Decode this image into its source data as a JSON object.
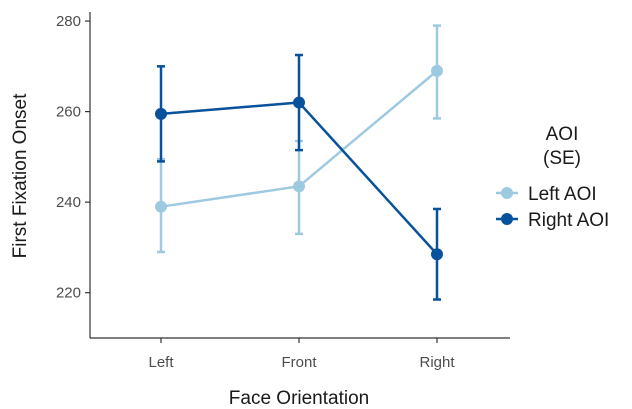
{
  "chart_data": {
    "type": "line",
    "title": "",
    "xlabel": "Face Orientation",
    "ylabel": "First Fixation Onset",
    "categories": [
      "Left",
      "Front",
      "Right"
    ],
    "ylim": [
      210,
      282
    ],
    "yticks": [
      220,
      240,
      260,
      280
    ],
    "grid": false,
    "legend": {
      "title_lines": [
        "AOI",
        "(SE)"
      ],
      "placement": "right"
    },
    "series": [
      {
        "name": "Left AOI",
        "color": "#9ecae1",
        "values": [
          239,
          243.5,
          269
        ],
        "se_low": [
          229,
          233,
          258.5
        ],
        "se_high": [
          249.5,
          253.5,
          279
        ]
      },
      {
        "name": "Right AOI",
        "color": "#08519c",
        "values": [
          259.5,
          262,
          228.5
        ],
        "se_low": [
          249,
          251.5,
          218.5
        ],
        "se_high": [
          270,
          272.5,
          238.5
        ]
      }
    ]
  }
}
